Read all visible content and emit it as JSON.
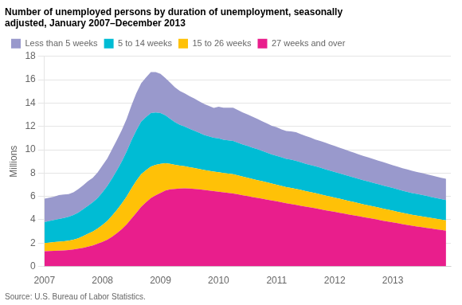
{
  "chart_data": {
    "type": "area",
    "stacked": true,
    "title": "Number of unemployed persons by duration of unemployment, seasonally\nadjusted, January 2007–December 2013",
    "ylabel": "Millions",
    "source": "Source: U.S. Bureau of Labor Statistics.",
    "xlim": [
      2007,
      2014
    ],
    "xticks": [
      2007,
      2008,
      2009,
      2010,
      2011,
      2012,
      2013
    ],
    "ylim": [
      0,
      18
    ],
    "yticks": [
      0,
      2,
      4,
      6,
      8,
      10,
      12,
      14,
      16,
      18
    ],
    "grid": "y",
    "legend": "top",
    "x": [
      2007,
      2007.0833333333333,
      2007.1666666666667,
      2007.25,
      2007.3333333333333,
      2007.4166666666667,
      2007.5,
      2007.5833333333333,
      2007.6666666666667,
      2007.75,
      2007.8333333333333,
      2007.9166666666667,
      2008,
      2008.0833333333333,
      2008.1666666666667,
      2008.25,
      2008.3333333333333,
      2008.4166666666667,
      2008.5,
      2008.5833333333333,
      2008.6666666666667,
      2008.75,
      2008.8333333333333,
      2008.9166666666667,
      2009,
      2009.0833333333333,
      2009.1666666666667,
      2009.25,
      2009.3333333333333,
      2009.4166666666667,
      2009.5,
      2009.5833333333333,
      2009.6666666666667,
      2009.75,
      2009.8333333333333,
      2009.9166666666667,
      2010,
      2010.0833333333333,
      2010.1666666666667,
      2010.25,
      2010.3333333333333,
      2010.4166666666667,
      2010.5,
      2010.5833333333333,
      2010.6666666666667,
      2010.75,
      2010.8333333333333,
      2010.9166666666667,
      2011,
      2011.0833333333333,
      2011.1666666666667,
      2011.25,
      2011.3333333333333,
      2011.4166666666667,
      2011.5,
      2011.5833333333333,
      2011.6666666666667,
      2011.75,
      2011.8333333333333,
      2011.9166666666667,
      2012,
      2012.0833333333333,
      2012.1666666666667,
      2012.25,
      2012.3333333333333,
      2012.4166666666667,
      2012.5,
      2012.5833333333333,
      2012.6666666666667,
      2012.75,
      2012.8333333333333,
      2012.9166666666667,
      2013,
      2013.0833333333333,
      2013.1666666666667,
      2013.25,
      2013.3333333333333,
      2013.4166666666667,
      2013.5,
      2013.5833333333333,
      2013.6666666666667,
      2013.75,
      2013.8333333333333,
      2013.9166666666667
    ],
    "series": [
      {
        "name": "Less than 5 weeks",
        "color": "#9999cc",
        "values": [
          2.0,
          2.0,
          2.0,
          2.05,
          2.0,
          1.95,
          1.95,
          2.0,
          2.05,
          2.1,
          2.1,
          2.2,
          2.3,
          2.35,
          2.5,
          2.6,
          2.7,
          2.8,
          3.0,
          3.2,
          3.3,
          3.4,
          3.5,
          3.45,
          3.35,
          3.2,
          3.1,
          3.0,
          2.9,
          2.85,
          2.8,
          2.75,
          2.7,
          2.65,
          2.6,
          2.55,
          2.7,
          2.75,
          2.8,
          2.85,
          2.8,
          2.75,
          2.7,
          2.65,
          2.6,
          2.55,
          2.5,
          2.45,
          2.45,
          2.4,
          2.38,
          2.42,
          2.45,
          2.4,
          2.38,
          2.35,
          2.3,
          2.3,
          2.28,
          2.25,
          2.22,
          2.2,
          2.18,
          2.15,
          2.12,
          2.1,
          2.08,
          2.06,
          2.04,
          2.02,
          2.0,
          1.98,
          1.96,
          1.95,
          1.93,
          1.92,
          1.9,
          1.88,
          1.87,
          1.86,
          1.85,
          1.84,
          1.83,
          1.82
        ]
      },
      {
        "name": "5 to 14 weeks",
        "color": "#00bcd4",
        "values": [
          1.8,
          1.85,
          1.9,
          1.95,
          2.0,
          2.05,
          2.1,
          2.2,
          2.3,
          2.4,
          2.5,
          2.6,
          2.8,
          3.0,
          3.2,
          3.4,
          3.6,
          3.85,
          4.1,
          4.3,
          4.5,
          4.55,
          4.6,
          4.5,
          4.35,
          4.1,
          3.85,
          3.65,
          3.5,
          3.4,
          3.3,
          3.2,
          3.1,
          3.0,
          2.95,
          2.9,
          2.9,
          2.85,
          2.85,
          2.85,
          2.8,
          2.75,
          2.72,
          2.68,
          2.65,
          2.6,
          2.55,
          2.5,
          2.48,
          2.45,
          2.42,
          2.42,
          2.4,
          2.38,
          2.35,
          2.32,
          2.3,
          2.28,
          2.25,
          2.22,
          2.2,
          2.18,
          2.15,
          2.12,
          2.1,
          2.08,
          2.06,
          2.04,
          2.02,
          2.0,
          1.98,
          1.96,
          1.94,
          1.92,
          1.9,
          1.88,
          1.86,
          1.85,
          1.84,
          1.82,
          1.8,
          1.78,
          1.76,
          1.75
        ]
      },
      {
        "name": "15 to 26 weeks",
        "color": "#ffc107",
        "values": [
          0.7,
          0.72,
          0.74,
          0.76,
          0.78,
          0.8,
          0.85,
          0.9,
          1.0,
          1.1,
          1.2,
          1.3,
          1.45,
          1.6,
          1.8,
          2.0,
          2.2,
          2.4,
          2.6,
          2.75,
          2.8,
          2.75,
          2.7,
          2.6,
          2.5,
          2.35,
          2.2,
          2.05,
          1.95,
          1.88,
          1.82,
          1.78,
          1.75,
          1.72,
          1.7,
          1.68,
          1.68,
          1.65,
          1.65,
          1.65,
          1.62,
          1.6,
          1.58,
          1.55,
          1.52,
          1.5,
          1.48,
          1.45,
          1.42,
          1.4,
          1.38,
          1.38,
          1.37,
          1.35,
          1.33,
          1.32,
          1.3,
          1.28,
          1.26,
          1.24,
          1.22,
          1.2,
          1.18,
          1.16,
          1.14,
          1.12,
          1.1,
          1.08,
          1.06,
          1.05,
          1.04,
          1.02,
          1.0,
          0.98,
          0.97,
          0.96,
          0.95,
          0.94,
          0.93,
          0.92,
          0.91,
          0.9,
          0.89,
          0.88
        ]
      },
      {
        "name": "27 weeks and over",
        "color": "#e91e8c",
        "values": [
          1.3,
          1.32,
          1.34,
          1.36,
          1.38,
          1.4,
          1.45,
          1.52,
          1.6,
          1.7,
          1.8,
          1.95,
          2.1,
          2.3,
          2.55,
          2.85,
          3.2,
          3.6,
          4.1,
          4.6,
          5.1,
          5.5,
          5.85,
          6.1,
          6.3,
          6.5,
          6.6,
          6.65,
          6.68,
          6.7,
          6.68,
          6.65,
          6.6,
          6.55,
          6.5,
          6.45,
          6.4,
          6.35,
          6.3,
          6.25,
          6.18,
          6.1,
          6.02,
          5.95,
          5.88,
          5.8,
          5.72,
          5.65,
          5.58,
          5.5,
          5.42,
          5.35,
          5.28,
          5.2,
          5.12,
          5.05,
          4.98,
          4.9,
          4.82,
          4.75,
          4.68,
          4.6,
          4.52,
          4.45,
          4.38,
          4.3,
          4.22,
          4.15,
          4.08,
          4.0,
          3.92,
          3.85,
          3.78,
          3.7,
          3.62,
          3.55,
          3.48,
          3.42,
          3.36,
          3.3,
          3.24,
          3.18,
          3.12,
          3.06
        ]
      }
    ]
  }
}
